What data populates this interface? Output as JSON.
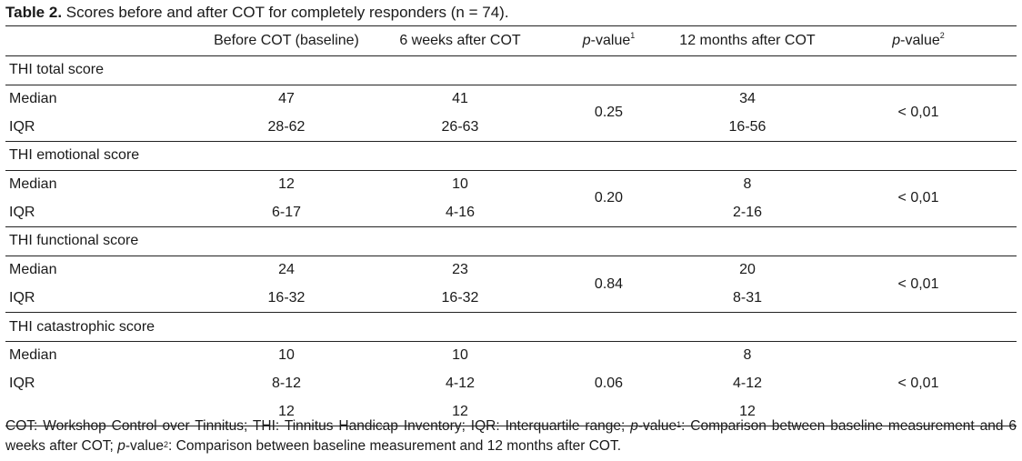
{
  "caption": {
    "label": "Table 2.",
    "text": " Scores before and after COT for completely responders (n = 74)."
  },
  "columns": {
    "baseline": "Before COT (baseline)",
    "six_weeks": "6 weeks after COT",
    "p1_italic": "p",
    "p1_rest": "-value",
    "p1_sup": "1",
    "twelve_months": "12 months after COT",
    "p2_italic": "p",
    "p2_rest": "-value",
    "p2_sup": "2"
  },
  "sections": [
    {
      "title": "THI total score",
      "median": {
        "label": "Median",
        "baseline": "47",
        "six_weeks": "41",
        "twelve_months": "34"
      },
      "iqr": {
        "label": "IQR",
        "baseline": "28-62",
        "six_weeks": "26-63",
        "twelve_months": "16-56"
      },
      "p1": "0.25",
      "p2": "< 0,01"
    },
    {
      "title": "THI emotional score",
      "median": {
        "label": "Median",
        "baseline": "12",
        "six_weeks": "10",
        "twelve_months": "8"
      },
      "iqr": {
        "label": "IQR",
        "baseline": "6-17",
        "six_weeks": "4-16",
        "twelve_months": "2-16"
      },
      "p1": "0.20",
      "p2": "< 0,01"
    },
    {
      "title": "THI functional score",
      "median": {
        "label": "Median",
        "baseline": "24",
        "six_weeks": "23",
        "twelve_months": "20"
      },
      "iqr": {
        "label": "IQR",
        "baseline": "16-32",
        "six_weeks": "16-32",
        "twelve_months": "8-31"
      },
      "p1": "0.84",
      "p2": "< 0,01"
    },
    {
      "title": "THI catastrophic score",
      "median": {
        "label": "Median",
        "baseline": "10",
        "six_weeks": "10",
        "twelve_months": "8"
      },
      "iqr": {
        "label": "IQR",
        "baseline": "8-12",
        "six_weeks": "4-12",
        "twelve_months": "4-12"
      },
      "extra": {
        "baseline": "12",
        "six_weeks": "12",
        "twelve_months": "12"
      },
      "p1": "0.06",
      "p2": "< 0,01"
    }
  ],
  "footnote": {
    "part1": "COT: Workshop Control over Tinnitus; THI: Tinnitus Handicap Inventory; IQR: Interquartile range; ",
    "p_a": "p",
    "part2": "-value",
    "sup_a": "1",
    "part3": ": Comparison between baseline measurement and 6 weeks after COT; ",
    "p_b": "p",
    "part4": "-value",
    "sup_b": "2",
    "part5": ": Comparison between baseline measurement and 12 months after COT."
  }
}
